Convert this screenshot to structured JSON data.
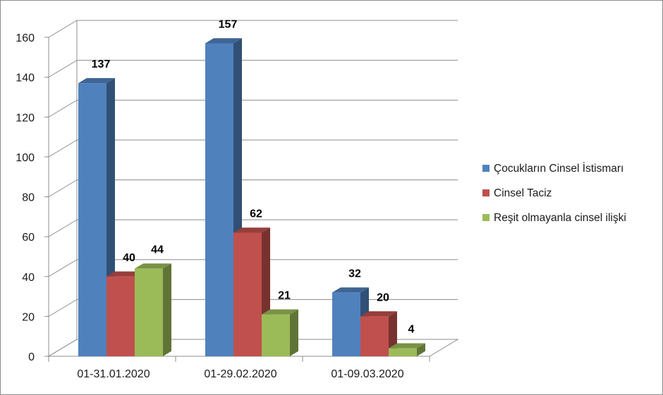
{
  "chart_data": {
    "type": "bar",
    "three_d": true,
    "categories": [
      "01-31.01.2020",
      "01-29.02.2020",
      "01-09.03.2020"
    ],
    "series": [
      {
        "name": "Çocukların Cinsel İstismarı",
        "values": [
          137,
          157,
          32
        ],
        "color": "#4f81bd"
      },
      {
        "name": "Cinsel Taciz",
        "values": [
          40,
          62,
          20
        ],
        "color": "#c0504d"
      },
      {
        "name": "Reşit olmayanla cinsel ilişki",
        "values": [
          44,
          21,
          4
        ],
        "color": "#9bbb59"
      }
    ],
    "ylim": [
      0,
      160
    ],
    "yticks": [
      0,
      20,
      40,
      60,
      80,
      100,
      120,
      140,
      160
    ],
    "grid": true,
    "data_labels": true,
    "legend_position": "right"
  }
}
